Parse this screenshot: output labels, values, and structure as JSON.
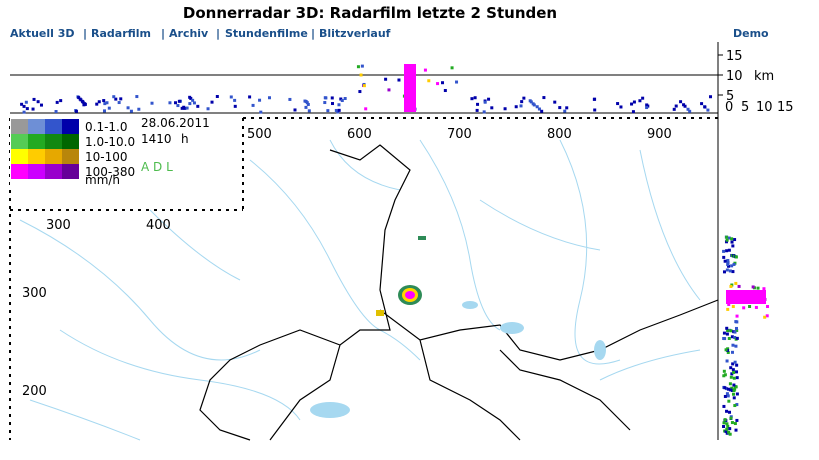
{
  "header": {
    "title": "Donnerradar 3D: Radarfilm letzte 2 Stunden",
    "nav": [
      "Aktuell 3D",
      "Radarfilm",
      "Archiv",
      "Stundenfilme",
      "Blitzverlauf"
    ],
    "separator": "|",
    "demo": "Demo"
  },
  "profile": {
    "height_ticks": [
      "15",
      "10",
      "5"
    ],
    "unit": "km",
    "width_ticks": [
      "0",
      "5",
      "10",
      "15"
    ]
  },
  "legend": {
    "classes": [
      "0.1-1.0",
      "1.0-10.0",
      "10-100",
      "100-380"
    ],
    "date": "28.06.2011",
    "time": "1410",
    "time_unit": "h",
    "source": "A D L",
    "unit": "mm/h"
  },
  "map": {
    "x_labels": [
      "500",
      "600",
      "700",
      "800",
      "900"
    ],
    "inset_x_labels": [
      "300",
      "400"
    ],
    "y_labels": [
      "300",
      "200"
    ]
  }
}
